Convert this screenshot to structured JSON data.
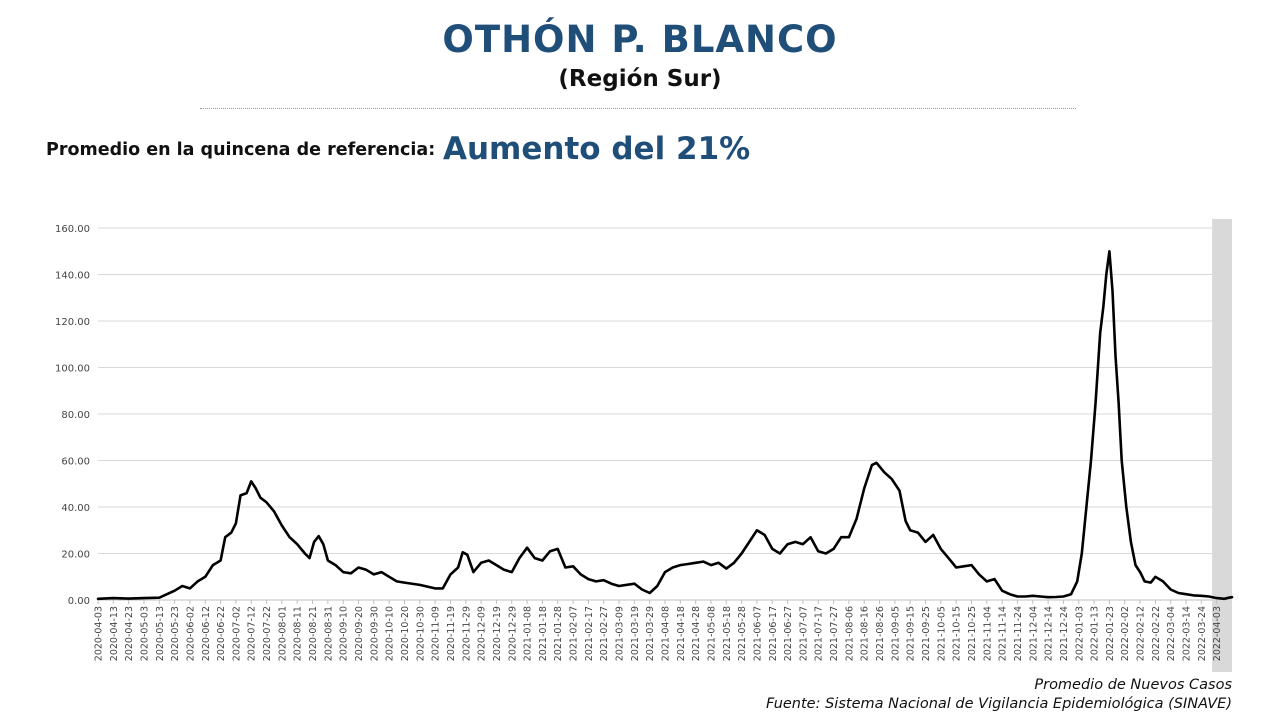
{
  "header": {
    "title": "OTHÓN P. BLANCO",
    "subtitle": "(Región Sur)",
    "reference_label": "Promedio en la quincena de referencia:",
    "reference_value": "Aumento del 21%"
  },
  "footer": {
    "series_caption": "Promedio de Nuevos Casos",
    "source": "Fuente: Sistema Nacional de Vigilancia Epidemiológica (SINAVE)"
  },
  "colors": {
    "title": "#1f4e79",
    "line": "#000000",
    "shade": "#d9d9d9",
    "grid": "#d9d9d9"
  },
  "chart_data": {
    "type": "line",
    "title": "",
    "xlabel": "",
    "ylabel": "",
    "ylim": [
      0,
      160
    ],
    "yticks": [
      "0.00",
      "20.00",
      "40.00",
      "60.00",
      "80.00",
      "100.00",
      "120.00",
      "140.00",
      "160.00"
    ],
    "grid": true,
    "legend": "none",
    "x_start": "2020-04-03",
    "x_end": "2022-04-13",
    "x_tick_labels": [
      "2020-04-03",
      "2020-04-13",
      "2020-04-23",
      "2020-05-03",
      "2020-05-13",
      "2020-05-23",
      "2020-06-02",
      "2020-06-12",
      "2020-06-22",
      "2020-07-02",
      "2020-07-12",
      "2020-07-22",
      "2020-08-01",
      "2020-08-11",
      "2020-08-21",
      "2020-08-31",
      "2020-09-10",
      "2020-09-20",
      "2020-09-30",
      "2020-10-10",
      "2020-10-20",
      "2020-10-30",
      "2020-11-09",
      "2020-11-19",
      "2020-11-29",
      "2020-12-09",
      "2020-12-19",
      "2020-12-29",
      "2021-01-08",
      "2021-01-18",
      "2021-01-28",
      "2021-02-07",
      "2021-02-17",
      "2021-02-27",
      "2021-03-09",
      "2021-03-19",
      "2021-03-29",
      "2021-04-08",
      "2021-04-18",
      "2021-04-28",
      "2021-05-08",
      "2021-05-18",
      "2021-05-28",
      "2021-06-07",
      "2021-06-17",
      "2021-06-27",
      "2021-07-07",
      "2021-07-17",
      "2021-07-27",
      "2021-08-06",
      "2021-08-16",
      "2021-08-26",
      "2021-09-05",
      "2021-09-15",
      "2021-09-25",
      "2021-10-05",
      "2021-10-15",
      "2021-10-25",
      "2021-11-04",
      "2021-11-14",
      "2021-11-24",
      "2021-12-04",
      "2021-12-14",
      "2021-12-24",
      "2022-01-03",
      "2022-01-13",
      "2022-01-23",
      "2022-02-02",
      "2022-02-12",
      "2022-02-22",
      "2022-03-04",
      "2022-03-14",
      "2022-03-24",
      "2022-04-03"
    ],
    "shaded_range": [
      "2022-03-31",
      "2022-04-13"
    ],
    "series": [
      {
        "points": [
          [
            "2020-04-03",
            0.5
          ],
          [
            "2020-04-13",
            0.8
          ],
          [
            "2020-04-23",
            0.6
          ],
          [
            "2020-05-03",
            0.8
          ],
          [
            "2020-05-13",
            1.0
          ],
          [
            "2020-05-23",
            4.0
          ],
          [
            "2020-05-28",
            6.0
          ],
          [
            "2020-06-02",
            5.0
          ],
          [
            "2020-06-07",
            8.0
          ],
          [
            "2020-06-12",
            10.0
          ],
          [
            "2020-06-17",
            15.0
          ],
          [
            "2020-06-22",
            17.0
          ],
          [
            "2020-06-25",
            27.0
          ],
          [
            "2020-06-29",
            29.0
          ],
          [
            "2020-07-02",
            33.0
          ],
          [
            "2020-07-05",
            45.0
          ],
          [
            "2020-07-09",
            46.0
          ],
          [
            "2020-07-12",
            51.0
          ],
          [
            "2020-07-15",
            48.0
          ],
          [
            "2020-07-18",
            44.0
          ],
          [
            "2020-07-22",
            42.0
          ],
          [
            "2020-07-27",
            38.0
          ],
          [
            "2020-08-01",
            32.0
          ],
          [
            "2020-08-06",
            27.0
          ],
          [
            "2020-08-11",
            24.0
          ],
          [
            "2020-08-16",
            20.0
          ],
          [
            "2020-08-19",
            18.0
          ],
          [
            "2020-08-22",
            25.0
          ],
          [
            "2020-08-25",
            27.5
          ],
          [
            "2020-08-28",
            24.0
          ],
          [
            "2020-08-31",
            17.0
          ],
          [
            "2020-09-05",
            15.0
          ],
          [
            "2020-09-10",
            12.0
          ],
          [
            "2020-09-15",
            11.5
          ],
          [
            "2020-09-20",
            14.0
          ],
          [
            "2020-09-25",
            13.0
          ],
          [
            "2020-09-30",
            11.0
          ],
          [
            "2020-10-05",
            12.0
          ],
          [
            "2020-10-10",
            10.0
          ],
          [
            "2020-10-15",
            8.0
          ],
          [
            "2020-10-20",
            7.5
          ],
          [
            "2020-10-30",
            6.5
          ],
          [
            "2020-11-09",
            5.0
          ],
          [
            "2020-11-14",
            5.0
          ],
          [
            "2020-11-19",
            11.0
          ],
          [
            "2020-11-24",
            14.0
          ],
          [
            "2020-11-27",
            20.5
          ],
          [
            "2020-11-30",
            19.5
          ],
          [
            "2020-12-04",
            12.0
          ],
          [
            "2020-12-09",
            16.0
          ],
          [
            "2020-12-14",
            17.0
          ],
          [
            "2020-12-19",
            15.0
          ],
          [
            "2020-12-24",
            13.0
          ],
          [
            "2020-12-29",
            12.0
          ],
          [
            "2021-01-03",
            18.0
          ],
          [
            "2021-01-08",
            22.5
          ],
          [
            "2021-01-13",
            18.0
          ],
          [
            "2021-01-18",
            17.0
          ],
          [
            "2021-01-23",
            21.0
          ],
          [
            "2021-01-28",
            22.0
          ],
          [
            "2021-02-02",
            14.0
          ],
          [
            "2021-02-07",
            14.5
          ],
          [
            "2021-02-12",
            11.0
          ],
          [
            "2021-02-17",
            9.0
          ],
          [
            "2021-02-22",
            8.0
          ],
          [
            "2021-02-27",
            8.5
          ],
          [
            "2021-03-04",
            7.0
          ],
          [
            "2021-03-09",
            6.0
          ],
          [
            "2021-03-19",
            7.0
          ],
          [
            "2021-03-24",
            4.5
          ],
          [
            "2021-03-29",
            3.0
          ],
          [
            "2021-04-03",
            6.0
          ],
          [
            "2021-04-08",
            12.0
          ],
          [
            "2021-04-13",
            14.0
          ],
          [
            "2021-04-18",
            15.0
          ],
          [
            "2021-04-23",
            15.5
          ],
          [
            "2021-04-28",
            16.0
          ],
          [
            "2021-05-03",
            16.5
          ],
          [
            "2021-05-08",
            15.0
          ],
          [
            "2021-05-13",
            16.0
          ],
          [
            "2021-05-18",
            13.5
          ],
          [
            "2021-05-23",
            16.0
          ],
          [
            "2021-05-28",
            20.0
          ],
          [
            "2021-06-02",
            25.0
          ],
          [
            "2021-06-07",
            30.0
          ],
          [
            "2021-06-12",
            28.0
          ],
          [
            "2021-06-17",
            22.0
          ],
          [
            "2021-06-22",
            20.0
          ],
          [
            "2021-06-27",
            24.0
          ],
          [
            "2021-07-02",
            25.0
          ],
          [
            "2021-07-07",
            24.0
          ],
          [
            "2021-07-12",
            27.0
          ],
          [
            "2021-07-17",
            21.0
          ],
          [
            "2021-07-22",
            20.0
          ],
          [
            "2021-07-27",
            22.0
          ],
          [
            "2021-08-01",
            27.0
          ],
          [
            "2021-08-06",
            27.0
          ],
          [
            "2021-08-11",
            35.0
          ],
          [
            "2021-08-16",
            48.0
          ],
          [
            "2021-08-21",
            58.0
          ],
          [
            "2021-08-24",
            59.0
          ],
          [
            "2021-08-29",
            55.0
          ],
          [
            "2021-09-03",
            52.0
          ],
          [
            "2021-09-08",
            47.0
          ],
          [
            "2021-09-12",
            34.0
          ],
          [
            "2021-09-15",
            30.0
          ],
          [
            "2021-09-20",
            29.0
          ],
          [
            "2021-09-25",
            25.0
          ],
          [
            "2021-09-30",
            28.0
          ],
          [
            "2021-10-05",
            22.0
          ],
          [
            "2021-10-10",
            18.0
          ],
          [
            "2021-10-15",
            14.0
          ],
          [
            "2021-10-20",
            14.5
          ],
          [
            "2021-10-25",
            15.0
          ],
          [
            "2021-10-30",
            11.0
          ],
          [
            "2021-11-04",
            8.0
          ],
          [
            "2021-11-09",
            9.0
          ],
          [
            "2021-11-14",
            4.0
          ],
          [
            "2021-11-19",
            2.5
          ],
          [
            "2021-11-24",
            1.5
          ],
          [
            "2021-11-29",
            1.5
          ],
          [
            "2021-12-04",
            1.8
          ],
          [
            "2021-12-09",
            1.5
          ],
          [
            "2021-12-14",
            1.2
          ],
          [
            "2021-12-19",
            1.3
          ],
          [
            "2021-12-24",
            1.5
          ],
          [
            "2021-12-29",
            2.5
          ],
          [
            "2022-01-02",
            8.0
          ],
          [
            "2022-01-05",
            20.0
          ],
          [
            "2022-01-08",
            40.0
          ],
          [
            "2022-01-11",
            60.0
          ],
          [
            "2022-01-14",
            85.0
          ],
          [
            "2022-01-17",
            115.0
          ],
          [
            "2022-01-19",
            126.0
          ],
          [
            "2022-01-21",
            140.0
          ],
          [
            "2022-01-23",
            150.0
          ],
          [
            "2022-01-25",
            133.0
          ],
          [
            "2022-01-27",
            105.0
          ],
          [
            "2022-01-29",
            85.0
          ],
          [
            "2022-01-31",
            60.0
          ],
          [
            "2022-02-03",
            40.0
          ],
          [
            "2022-02-06",
            25.0
          ],
          [
            "2022-02-09",
            15.0
          ],
          [
            "2022-02-12",
            12.0
          ],
          [
            "2022-02-15",
            8.0
          ],
          [
            "2022-02-19",
            7.5
          ],
          [
            "2022-02-22",
            10.0
          ],
          [
            "2022-02-27",
            8.0
          ],
          [
            "2022-03-04",
            4.5
          ],
          [
            "2022-03-09",
            3.0
          ],
          [
            "2022-03-14",
            2.5
          ],
          [
            "2022-03-19",
            2.0
          ],
          [
            "2022-03-24",
            1.8
          ],
          [
            "2022-03-29",
            1.5
          ],
          [
            "2022-04-03",
            0.8
          ],
          [
            "2022-04-08",
            0.5
          ],
          [
            "2022-04-11",
            1.0
          ],
          [
            "2022-04-13",
            1.2
          ]
        ]
      }
    ]
  }
}
